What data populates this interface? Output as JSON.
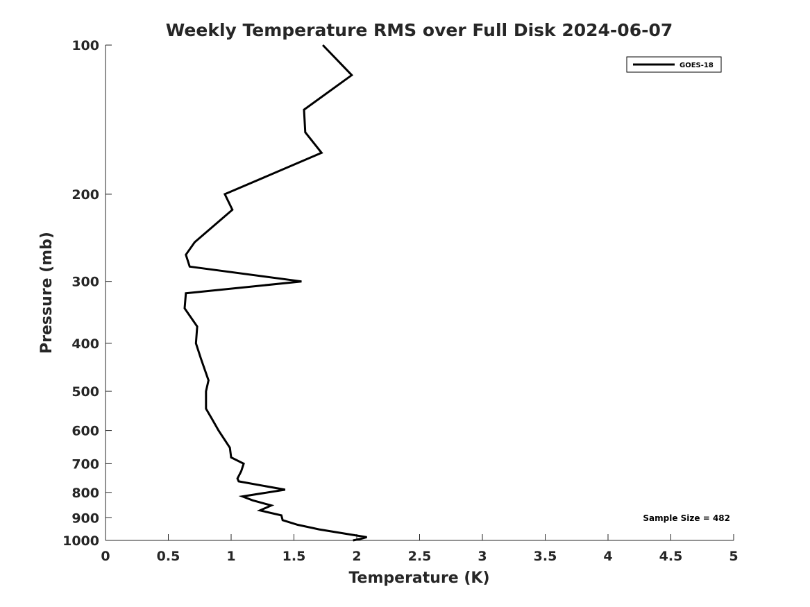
{
  "chart_data": {
    "type": "line",
    "title": "Weekly Temperature RMS over Full Disk 2024-06-07",
    "xlabel": "Temperature (K)",
    "ylabel": "Pressure (mb)",
    "xlim": [
      0,
      5
    ],
    "ylim": [
      1000,
      100
    ],
    "y_scale": "log",
    "y_reversed": true,
    "x_ticks": [
      0,
      0.5,
      1,
      1.5,
      2,
      2.5,
      3,
      3.5,
      4,
      4.5,
      5
    ],
    "x_tick_labels": [
      "0",
      "0.5",
      "1",
      "1.5",
      "2",
      "2.5",
      "3",
      "3.5",
      "4",
      "4.5",
      "5"
    ],
    "y_ticks": [
      100,
      200,
      300,
      400,
      500,
      600,
      700,
      800,
      900,
      1000
    ],
    "y_tick_labels": [
      "100",
      "200",
      "300",
      "400",
      "500",
      "600",
      "700",
      "800",
      "900",
      "1000"
    ],
    "grid": false,
    "legend": {
      "position": "top-right",
      "entries": [
        "GOES-18"
      ]
    },
    "annotation": "Sample Size = 482",
    "series": [
      {
        "name": "GOES-18",
        "color": "#000000",
        "points": [
          [
            1.73,
            100
          ],
          [
            1.96,
            115
          ],
          [
            1.58,
            135
          ],
          [
            1.59,
            150
          ],
          [
            1.72,
            165
          ],
          [
            0.95,
            200
          ],
          [
            1.01,
            215
          ],
          [
            0.71,
            250
          ],
          [
            0.64,
            265
          ],
          [
            0.67,
            280
          ],
          [
            1.56,
            300
          ],
          [
            0.64,
            317
          ],
          [
            0.63,
            340
          ],
          [
            0.73,
            370
          ],
          [
            0.72,
            400
          ],
          [
            0.76,
            430
          ],
          [
            0.82,
            475
          ],
          [
            0.8,
            500
          ],
          [
            0.8,
            542
          ],
          [
            0.85,
            570
          ],
          [
            0.9,
            600
          ],
          [
            0.99,
            650
          ],
          [
            1.0,
            680
          ],
          [
            1.1,
            700
          ],
          [
            1.08,
            725
          ],
          [
            1.05,
            750
          ],
          [
            1.06,
            760
          ],
          [
            1.43,
            790
          ],
          [
            1.09,
            815
          ],
          [
            1.17,
            830
          ],
          [
            1.32,
            850
          ],
          [
            1.23,
            870
          ],
          [
            1.4,
            890
          ],
          [
            1.41,
            910
          ],
          [
            1.53,
            930
          ],
          [
            1.7,
            950
          ],
          [
            1.97,
            975
          ],
          [
            2.08,
            985
          ],
          [
            2.03,
            993
          ],
          [
            1.97,
            1000
          ]
        ]
      }
    ]
  }
}
